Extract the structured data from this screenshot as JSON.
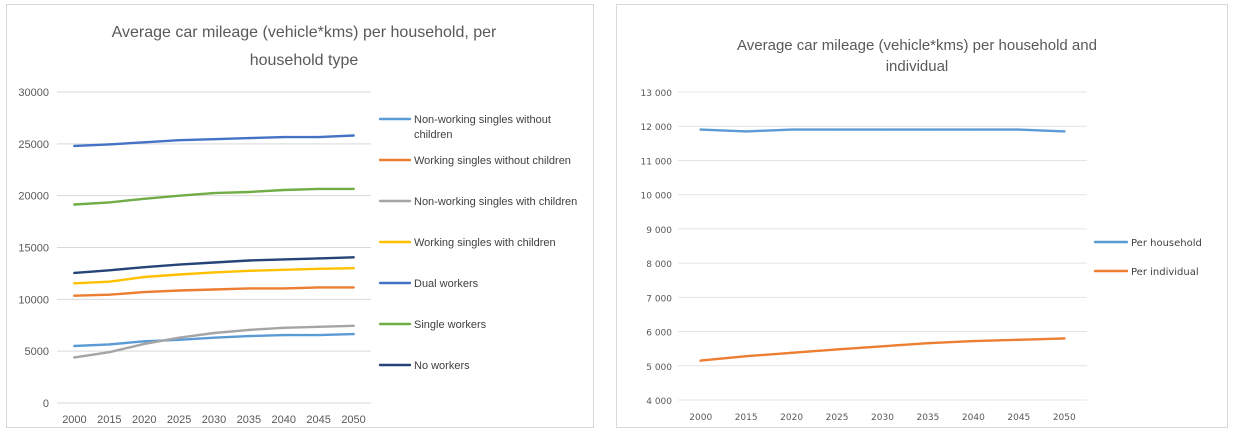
{
  "chart_data": [
    {
      "type": "line",
      "title_lines": [
        "Average car mileage (vehicle*kms) per household, per",
        "household type"
      ],
      "xlabel": "",
      "ylabel": "",
      "categories": [
        "2000",
        "2015",
        "2020",
        "2025",
        "2030",
        "2035",
        "2040",
        "2045",
        "2050"
      ],
      "ylim": [
        0,
        30000
      ],
      "yticks": [
        "0",
        "5000",
        "10000",
        "15000",
        "20000",
        "25000",
        "30000"
      ],
      "grid": true,
      "legend": "right",
      "series": [
        {
          "name": "Non-working singles without children",
          "legend_lines": [
            "Non-working singles without",
            "children"
          ],
          "color": "#5b9bd5",
          "values": [
            5500,
            5650,
            5950,
            6100,
            6300,
            6450,
            6550,
            6550,
            6650
          ]
        },
        {
          "name": "Working singles without children",
          "legend_lines": [
            "Working singles without children"
          ],
          "color": "#ed7d31",
          "values": [
            10350,
            10450,
            10700,
            10850,
            10950,
            11050,
            11050,
            11150,
            11150
          ]
        },
        {
          "name": "Non-working singles with children",
          "legend_lines": [
            "Non-working singles with children"
          ],
          "color": "#a5a5a5",
          "values": [
            4400,
            4900,
            5700,
            6300,
            6750,
            7050,
            7250,
            7350,
            7450
          ]
        },
        {
          "name": "Working singles with children",
          "legend_lines": [
            "Working singles with children"
          ],
          "color": "#ffc000",
          "values": [
            11550,
            11700,
            12150,
            12400,
            12600,
            12750,
            12850,
            12950,
            13000
          ]
        },
        {
          "name": "Dual workers",
          "legend_lines": [
            "Dual workers"
          ],
          "color": "#4472c4",
          "values": [
            24800,
            24950,
            25150,
            25350,
            25450,
            25550,
            25650,
            25650,
            25800
          ]
        },
        {
          "name": "Single workers",
          "legend_lines": [
            "Single workers"
          ],
          "color": "#70ad47",
          "values": [
            19150,
            19350,
            19700,
            20000,
            20250,
            20350,
            20550,
            20650,
            20650
          ]
        },
        {
          "name": "No workers",
          "legend_lines": [
            "No workers"
          ],
          "color": "#264478",
          "values": [
            12550,
            12800,
            13100,
            13350,
            13550,
            13750,
            13850,
            13950,
            14050
          ]
        }
      ]
    },
    {
      "type": "line",
      "title_lines": [
        "Average car mileage (vehicle*kms) per household and",
        "individual"
      ],
      "xlabel": "",
      "ylabel": "",
      "categories": [
        "2000",
        "2015",
        "2020",
        "2025",
        "2030",
        "2035",
        "2040",
        "2045",
        "2050"
      ],
      "ylim": [
        4000,
        13000
      ],
      "yticks": [
        "4 000",
        "5 000",
        "6 000",
        "7 000",
        "8 000",
        "9 000",
        "10 000",
        "11 000",
        "12 000",
        "13 000"
      ],
      "grid": true,
      "legend": "right",
      "series": [
        {
          "name": "Per household",
          "legend_lines": [
            "Per household"
          ],
          "color": "#5b9bd5",
          "values": [
            11900,
            11850,
            11900,
            11900,
            11900,
            11900,
            11900,
            11900,
            11850
          ]
        },
        {
          "name": "Per individual",
          "legend_lines": [
            "Per individual"
          ],
          "color": "#ed7d31",
          "values": [
            5150,
            5280,
            5380,
            5480,
            5570,
            5660,
            5720,
            5760,
            5800
          ]
        }
      ]
    }
  ]
}
